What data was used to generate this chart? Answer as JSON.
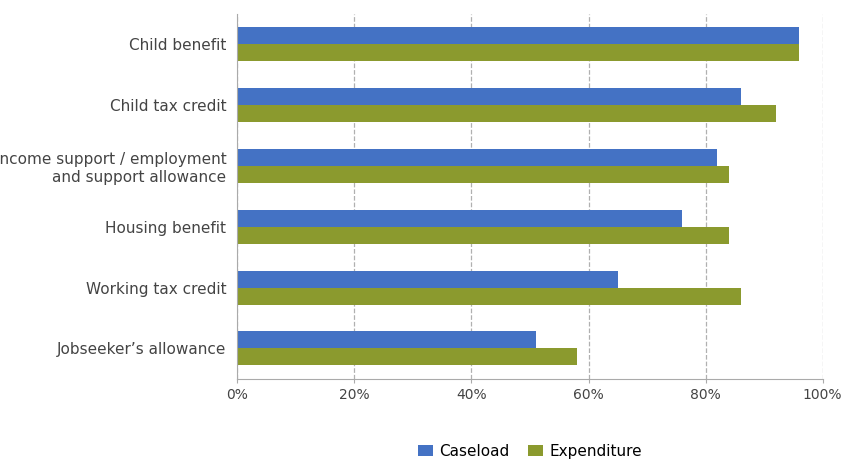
{
  "categories": [
    "Child benefit",
    "Child tax credit",
    "Income support / employment\nand support allowance",
    "Housing benefit",
    "Working tax credit",
    "Jobseeker’s allowance"
  ],
  "caseload": [
    96,
    86,
    82,
    76,
    65,
    51
  ],
  "expenditure": [
    96,
    92,
    84,
    84,
    86,
    58
  ],
  "caseload_color": "#4472C4",
  "expenditure_color": "#8B9A2E",
  "background_color": "#FFFFFF",
  "grid_color": "#B0B0B0",
  "xlim": [
    0,
    100
  ],
  "xtick_labels": [
    "0%",
    "20%",
    "40%",
    "60%",
    "80%",
    "100%"
  ],
  "xtick_values": [
    0,
    20,
    40,
    60,
    80,
    100
  ],
  "bar_height": 0.28,
  "legend_labels": [
    "Caseload",
    "Expenditure"
  ],
  "figsize": [
    8.48,
    4.62
  ],
  "dpi": 100
}
